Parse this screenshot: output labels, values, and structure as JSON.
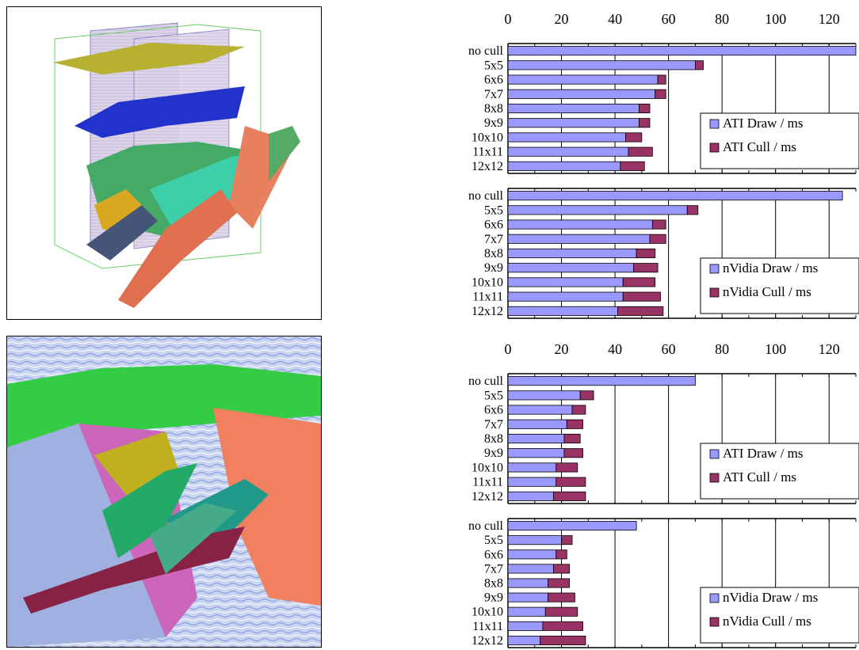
{
  "images": {
    "top": {
      "subject": "3d-seismic-volume-render"
    },
    "bottom": {
      "subject": "seismic-horizon-closeup-render"
    }
  },
  "colors": {
    "draw": "#9999ff",
    "cull": "#993366",
    "axis": "#000000",
    "grid": "#000000",
    "background": "#ffffff"
  },
  "chart_data": [
    {
      "type": "bar",
      "stacked": true,
      "orientation": "horizontal",
      "categories": [
        "no cull",
        "5x5",
        "6x6",
        "7x7",
        "8x8",
        "9x9",
        "10x10",
        "11x11",
        "12x12"
      ],
      "series": [
        {
          "name": "ATI Draw / ms",
          "values": [
            131,
            70,
            56,
            55,
            49,
            49,
            44,
            45,
            42
          ]
        },
        {
          "name": "ATI Cull / ms",
          "values": [
            0,
            3,
            3,
            4,
            4,
            4,
            6,
            9,
            9
          ]
        }
      ],
      "xticks": [
        0,
        20,
        40,
        60,
        80,
        100,
        120
      ],
      "xlim": [
        0,
        130
      ],
      "legend": "bottom-right",
      "grid": true
    },
    {
      "type": "bar",
      "stacked": true,
      "orientation": "horizontal",
      "categories": [
        "no cull",
        "5x5",
        "6x6",
        "7x7",
        "8x8",
        "9x9",
        "10x10",
        "11x11",
        "12x12"
      ],
      "series": [
        {
          "name": "nVidia Draw / ms",
          "values": [
            125,
            67,
            54,
            53,
            48,
            47,
            43,
            43,
            41
          ]
        },
        {
          "name": "nVidia Cull / ms",
          "values": [
            0,
            4,
            5,
            6,
            7,
            9,
            12,
            14,
            17
          ]
        }
      ],
      "xticks": [
        0,
        20,
        40,
        60,
        80,
        100,
        120
      ],
      "xlim": [
        0,
        130
      ],
      "legend": "bottom-right",
      "grid": true
    },
    {
      "type": "bar",
      "stacked": true,
      "orientation": "horizontal",
      "categories": [
        "no cull",
        "5x5",
        "6x6",
        "7x7",
        "8x8",
        "9x9",
        "10x10",
        "11x11",
        "12x12"
      ],
      "series": [
        {
          "name": "ATI Draw / ms",
          "values": [
            70,
            27,
            24,
            22,
            21,
            21,
            18,
            18,
            17
          ]
        },
        {
          "name": "ATI Cull / ms",
          "values": [
            0,
            5,
            5,
            6,
            6,
            7,
            8,
            11,
            12
          ]
        }
      ],
      "xticks": [
        0,
        20,
        40,
        60,
        80,
        100,
        120
      ],
      "xlim": [
        0,
        130
      ],
      "legend": "bottom-right",
      "grid": true
    },
    {
      "type": "bar",
      "stacked": true,
      "orientation": "horizontal",
      "categories": [
        "no cull",
        "5x5",
        "6x6",
        "7x7",
        "8x8",
        "9x9",
        "10x10",
        "11x11",
        "12x12"
      ],
      "series": [
        {
          "name": "nVidia Draw / ms",
          "values": [
            48,
            20,
            18,
            17,
            15,
            15,
            14,
            13,
            12
          ]
        },
        {
          "name": "nVidia Cull / ms",
          "values": [
            0,
            4,
            4,
            6,
            8,
            10,
            12,
            15,
            17
          ]
        }
      ],
      "xticks": [
        0,
        20,
        40,
        60,
        80,
        100,
        120
      ],
      "xlim": [
        0,
        130
      ],
      "legend": "bottom-right",
      "grid": true
    }
  ]
}
